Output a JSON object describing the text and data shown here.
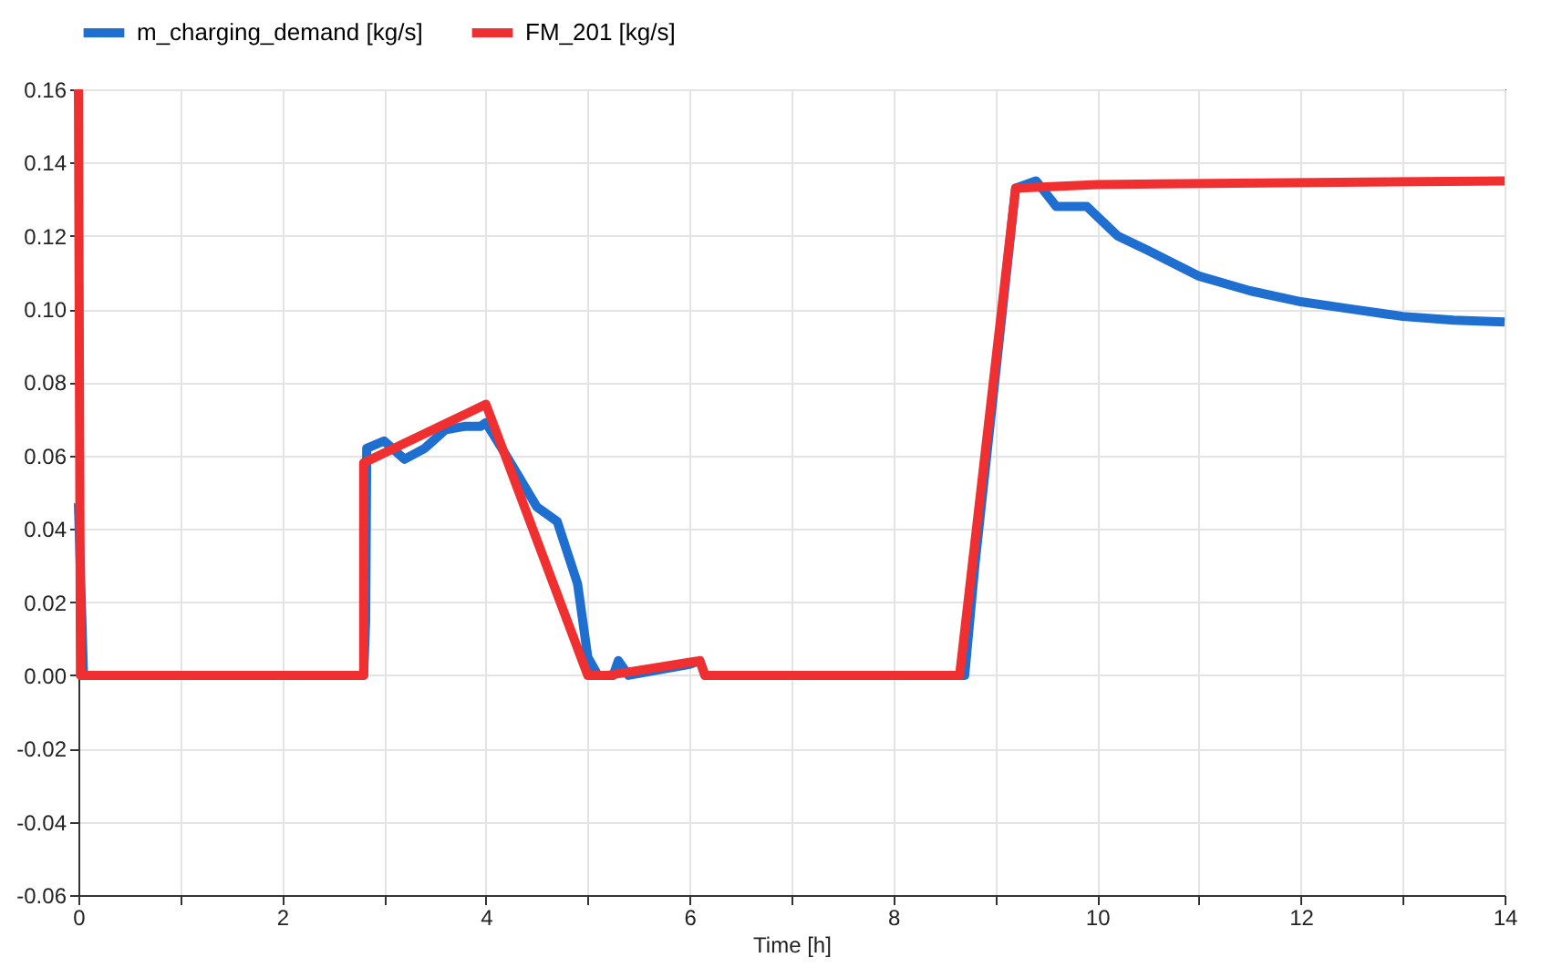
{
  "chart_data": {
    "type": "line",
    "xlabel": "Time [h]",
    "xlim": [
      0,
      14
    ],
    "xticks": [
      0,
      {
        "value": 1,
        "label": null
      },
      2,
      {
        "value": 3,
        "label": null
      },
      4,
      {
        "value": 5,
        "label": null
      },
      6,
      {
        "value": 7,
        "label": null
      },
      8,
      {
        "value": 9,
        "label": null
      },
      10,
      {
        "value": 11,
        "label": null
      },
      12,
      {
        "value": 13,
        "label": null
      },
      14
    ],
    "ylim": [
      -0.06,
      0.16
    ],
    "yticks": [
      {
        "value": -0.06,
        "label": "-0.06"
      },
      {
        "value": -0.04,
        "label": "-0.04"
      },
      {
        "value": -0.02,
        "label": "-0.02"
      },
      {
        "value": 0,
        "label": "0.00"
      },
      {
        "value": 0.02,
        "label": "0.02"
      },
      {
        "value": 0.04,
        "label": "0.04"
      },
      {
        "value": 0.06,
        "label": "0.06"
      },
      {
        "value": 0.08,
        "label": "0.08"
      },
      {
        "value": 0.1,
        "label": "0.10"
      },
      {
        "value": 0.12,
        "label": "0.12"
      },
      {
        "value": 0.14,
        "label": "0.14"
      },
      {
        "value": 0.16,
        "label": "0.16"
      }
    ],
    "grid": true,
    "legend": "top left",
    "line_style": "solid",
    "marker": "none",
    "series": [
      {
        "name": "m_charging_demand [kg/s]",
        "color": "#1f6fd0",
        "x": [
          0,
          0.05,
          2.8,
          2.82,
          2.83,
          3.0,
          3.2,
          3.4,
          3.6,
          3.8,
          3.95,
          4.0,
          4.2,
          4.5,
          4.7,
          4.9,
          5.0,
          5.1,
          5.25,
          5.3,
          5.4,
          6.0,
          6.1,
          6.15,
          8.7,
          8.8,
          9.2,
          9.4,
          9.6,
          9.9,
          10.2,
          10.5,
          11,
          11.5,
          12,
          12.5,
          13,
          13.5,
          14
        ],
        "values": [
          0.047,
          0,
          0,
          0.015,
          0.062,
          0.064,
          0.059,
          0.062,
          0.067,
          0.068,
          0.068,
          0.069,
          0.06,
          0.046,
          0.042,
          0.025,
          0.005,
          0,
          0,
          0.004,
          0,
          0.003,
          0.004,
          0,
          0,
          0.03,
          0.133,
          0.135,
          0.128,
          0.128,
          0.12,
          0.116,
          0.109,
          0.105,
          0.102,
          0.1,
          0.098,
          0.097,
          0.0965
        ]
      },
      {
        "name": "FM_201 [kg/s]",
        "color": "#f03030",
        "x": [
          0,
          0.02,
          2.8,
          2.8,
          4.0,
          5.0,
          5.2,
          6.1,
          6.15,
          8.65,
          9.2,
          10,
          14
        ],
        "values": [
          0.16,
          0,
          0,
          0.058,
          0.074,
          0,
          0,
          0.004,
          0,
          0,
          0.133,
          0.134,
          0.135
        ]
      }
    ]
  }
}
